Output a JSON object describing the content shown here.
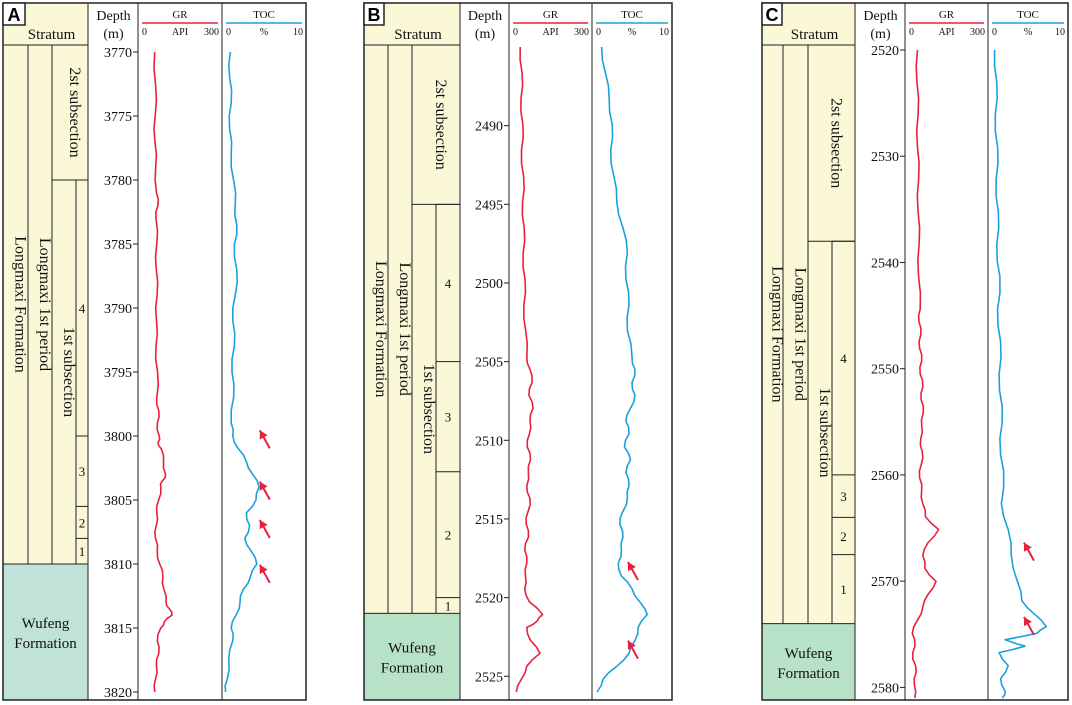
{
  "colors": {
    "beige": "#fbf8d8",
    "green_panel_a": "#c0e2d8",
    "green_panel_bc": "#b8e2c8",
    "gr_curve": "#e8203e",
    "toc_curve": "#1aa0dc",
    "arrow": "#e8203e",
    "frame": "#222222"
  },
  "common": {
    "depth_header": "Depth",
    "depth_unit": "(m)",
    "stratum_header": "Stratum",
    "gr_title": "GR",
    "gr_min": "0",
    "gr_unit": "API",
    "gr_max": "300",
    "toc_title": "TOC",
    "toc_min": "0",
    "toc_unit": "%",
    "toc_max": "10",
    "formation": "Longmaxi Formation",
    "period": "Longmaxi 1st period",
    "subsection_2": "2st subsection",
    "subsection_1": "1st subsection",
    "wufeng_line1": "Wufeng",
    "wufeng_line2": "Formation"
  },
  "panels": [
    {
      "label": "A",
      "depth_top": 3770,
      "depth_bottom": 3820,
      "depth_ticks": [
        "3770",
        "3775",
        "3780",
        "3785",
        "3790",
        "3795",
        "3800",
        "3805",
        "3810",
        "3815",
        "3820"
      ],
      "sub2_bottom_depth": 3780,
      "wufeng_top_depth": 3810,
      "layers": [
        {
          "label": "4",
          "top": 3780,
          "bottom": 3800
        },
        {
          "label": "3",
          "top": 3800,
          "bottom": 3805.5
        },
        {
          "label": "2",
          "top": 3805.5,
          "bottom": 3808
        },
        {
          "label": "1",
          "top": 3808,
          "bottom": 3810
        }
      ],
      "arrow_depths": [
        3800.5,
        3804.5,
        3807.5,
        3811
      ]
    },
    {
      "label": "B",
      "depth_top": 2485,
      "depth_bottom": 2526,
      "depth_ticks": [
        "2490",
        "2495",
        "2500",
        "2505",
        "2510",
        "2515",
        "2520",
        "2525"
      ],
      "sub2_bottom_depth": 2495,
      "wufeng_top_depth": 2521,
      "layers": [
        {
          "label": "4",
          "top": 2495,
          "bottom": 2505
        },
        {
          "label": "3",
          "top": 2505,
          "bottom": 2512
        },
        {
          "label": "2",
          "top": 2512,
          "bottom": 2520
        },
        {
          "label": "1",
          "top": 2520,
          "bottom": 2521
        }
      ],
      "arrow_depths": [
        2518.5,
        2523.5
      ]
    },
    {
      "label": "C",
      "depth_top": 2520,
      "depth_bottom": 2581,
      "depth_ticks": [
        "2520",
        "2530",
        "2540",
        "2550",
        "2560",
        "2570",
        "2580"
      ],
      "sub2_bottom_depth": 2538,
      "wufeng_top_depth": 2574,
      "layers": [
        {
          "label": "4",
          "top": 2538,
          "bottom": 2560
        },
        {
          "label": "3",
          "top": 2560,
          "bottom": 2564
        },
        {
          "label": "2",
          "top": 2564,
          "bottom": 2567.5
        },
        {
          "label": "1",
          "top": 2567.5,
          "bottom": 2574
        }
      ],
      "arrow_depths": [
        2567.5,
        2574.5
      ]
    }
  ]
}
